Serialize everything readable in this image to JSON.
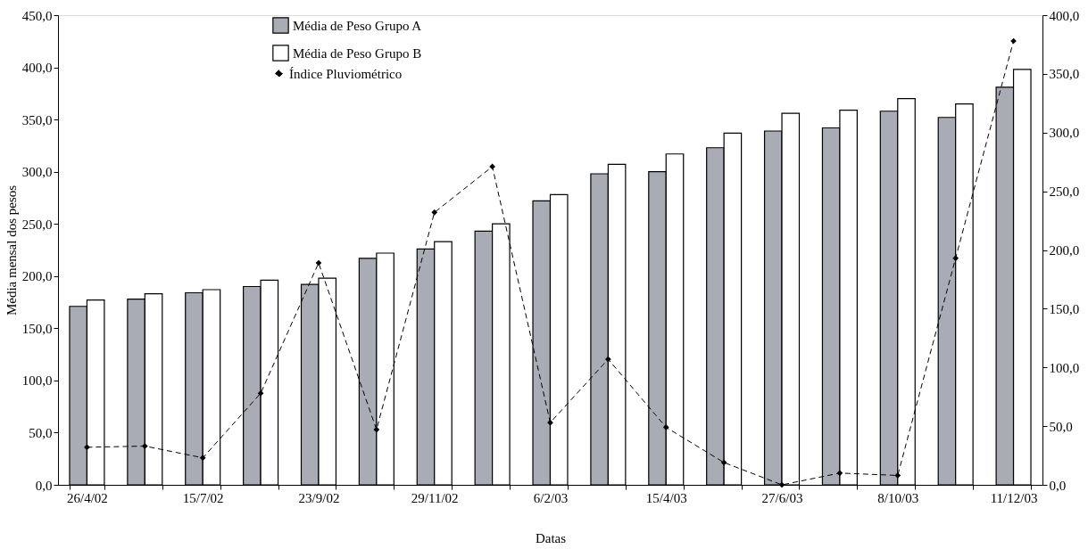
{
  "chart_data": {
    "type": "bar",
    "xlabel": "Datas",
    "ylabel": "Média mensal dos pesos",
    "categories": [
      "26/4/02",
      null,
      "15/7/02",
      null,
      "23/9/02",
      null,
      "29/11/02",
      null,
      "6/2/03",
      null,
      "15/4/03",
      null,
      "27/6/03",
      null,
      "8/10/03",
      null,
      "11/12/03"
    ],
    "series": [
      {
        "name": "Média de Peso Grupo A",
        "color": "#a9abb5",
        "values": [
          171,
          178,
          184,
          190,
          192,
          217,
          226,
          243,
          272,
          298,
          300,
          323,
          339,
          342,
          358,
          352,
          381
        ]
      },
      {
        "name": "Média de Peso Grupo B",
        "color": "#ffffff",
        "values": [
          177,
          183,
          187,
          196,
          198,
          222,
          233,
          250,
          278,
          307,
          317,
          337,
          356,
          359,
          370,
          365,
          398
        ]
      },
      {
        "name": "Índice Pluviométrico",
        "type": "line",
        "axis": "y2",
        "color": "#000000",
        "marker": "diamond",
        "line_style": "dashed",
        "values": [
          32,
          33,
          23,
          78,
          189,
          47,
          232,
          271,
          53,
          107,
          49,
          19,
          0,
          10,
          8,
          193,
          378
        ]
      }
    ],
    "ylim": [
      0,
      450
    ],
    "yticks": [
      {
        "value": 0,
        "label": "0,0"
      },
      {
        "value": 50,
        "label": "50,0"
      },
      {
        "value": 100,
        "label": "100,0"
      },
      {
        "value": 150,
        "label": "150,0"
      },
      {
        "value": 200,
        "label": "200,0"
      },
      {
        "value": 250,
        "label": "250,0"
      },
      {
        "value": 300,
        "label": "300,0"
      },
      {
        "value": 350,
        "label": "350,0"
      },
      {
        "value": 400,
        "label": "400,0"
      },
      {
        "value": 450,
        "label": "450,0"
      }
    ],
    "y2lim": [
      0,
      400
    ],
    "y2ticks": [
      {
        "value": 0,
        "label": "0,0"
      },
      {
        "value": 50,
        "label": "50,0"
      },
      {
        "value": 100,
        "label": "100,0"
      },
      {
        "value": 150,
        "label": "150,0"
      },
      {
        "value": 200,
        "label": "200,0"
      },
      {
        "value": 250,
        "label": "250,0"
      },
      {
        "value": 300,
        "label": "300,0"
      },
      {
        "value": 350,
        "label": "350,0"
      },
      {
        "value": 400,
        "label": "400,0"
      }
    ],
    "grid": false,
    "legend": "top"
  }
}
